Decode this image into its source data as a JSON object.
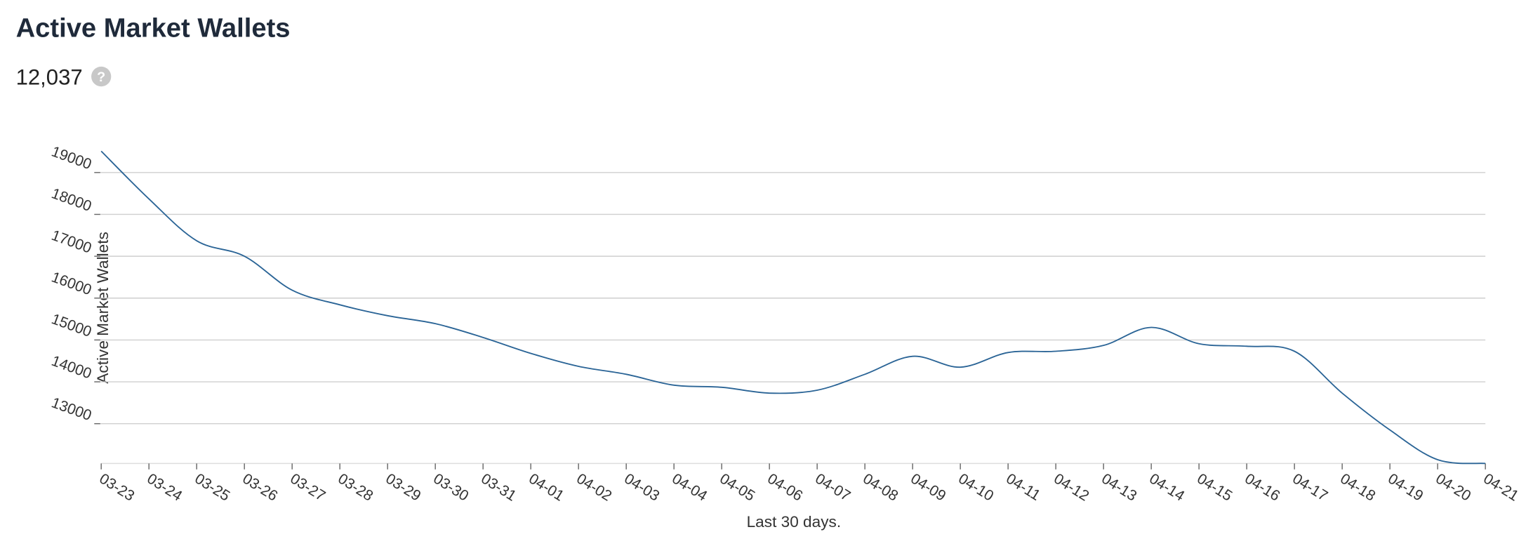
{
  "header": {
    "title": "Active Market Wallets",
    "headline": "12,037"
  },
  "chart_data": {
    "type": "line",
    "x_label": "Last 30 days.",
    "y_label": "Active Market Wallets",
    "categories": [
      "03-23",
      "03-24",
      "03-25",
      "03-26",
      "03-27",
      "03-28",
      "03-29",
      "03-30",
      "03-31",
      "04-01",
      "04-02",
      "04-03",
      "04-04",
      "04-05",
      "04-06",
      "04-07",
      "04-08",
      "04-09",
      "04-10",
      "04-11",
      "04-12",
      "04-13",
      "04-14",
      "04-15",
      "04-16",
      "04-17",
      "04-18",
      "04-19",
      "04-20",
      "04-21"
    ],
    "series": [
      {
        "name": "Active Market Wallets",
        "color": "#2a6496",
        "values": [
          19510,
          18370,
          17370,
          17000,
          16190,
          15840,
          15580,
          15390,
          15060,
          14680,
          14370,
          14180,
          13920,
          13870,
          13730,
          13800,
          14180,
          14610,
          14350,
          14700,
          14730,
          14870,
          15300,
          14910,
          14850,
          14730,
          13730,
          12850,
          12140,
          12050
        ]
      }
    ],
    "ylim": [
      12050,
      19800
    ],
    "yticks": [
      13000,
      14000,
      15000,
      16000,
      17000,
      18000,
      19000
    ],
    "grid": true
  }
}
